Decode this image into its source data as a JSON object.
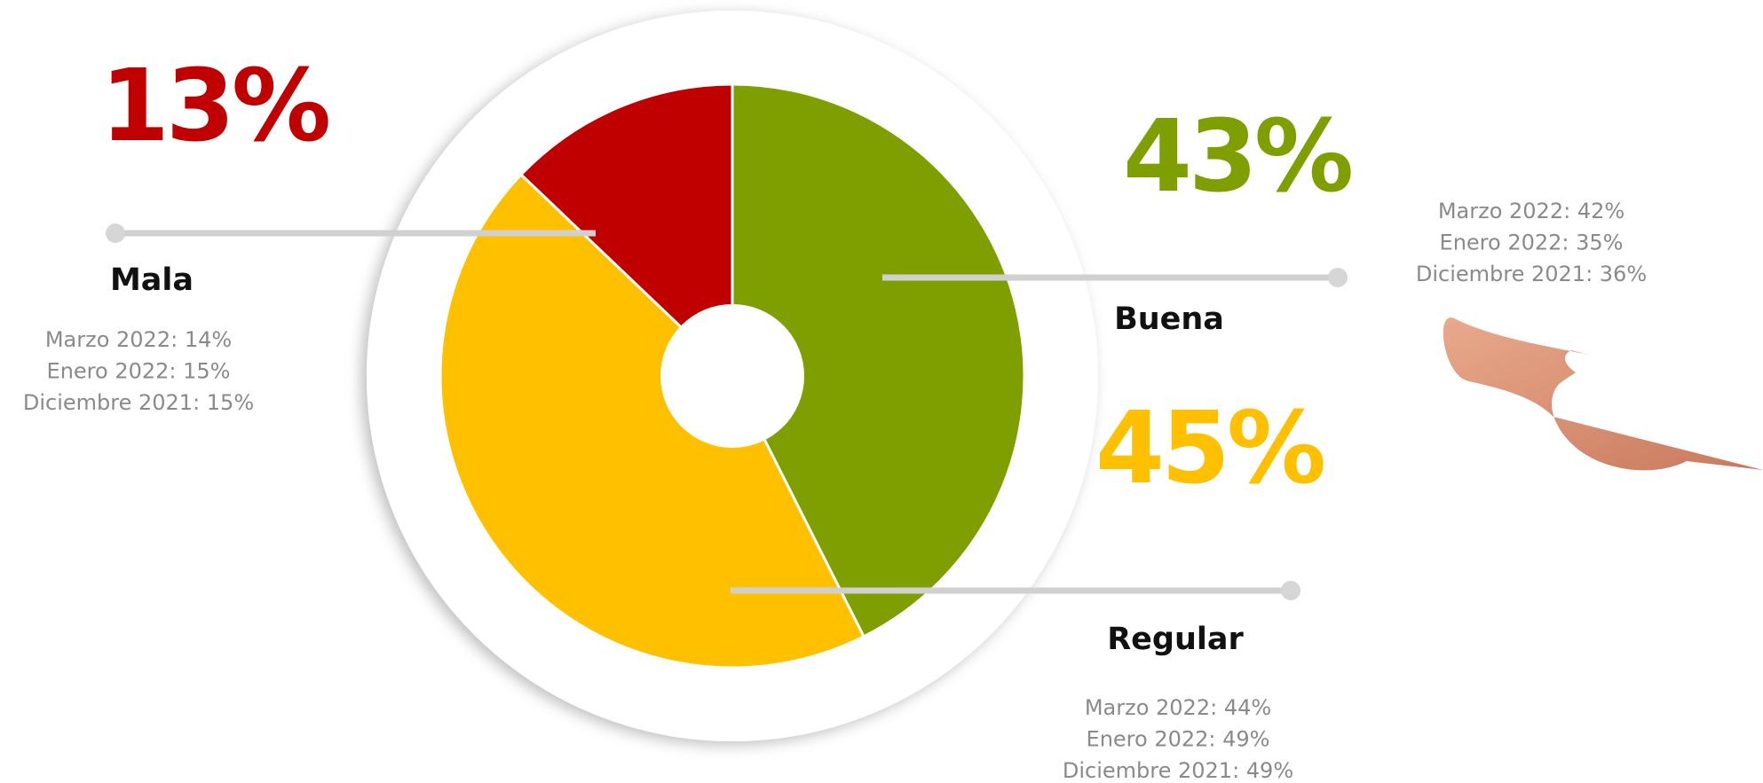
{
  "chart_data": {
    "type": "pie",
    "categories": [
      "Buena",
      "Regular",
      "Mala"
    ],
    "values": [
      43,
      45,
      13
    ],
    "value_labels": [
      "43%",
      "45%",
      "13%"
    ],
    "colors": [
      "#7f9f00",
      "#ffc000",
      "#c00000"
    ],
    "details": [
      [
        "Marzo 2022: 42%",
        "Enero 2022: 35%",
        "Diciembre 2021: 36%"
      ],
      [
        "Marzo 2022: 44%",
        "Enero 2022: 49%",
        "Diciembre 2021: 49%"
      ],
      [
        "Marzo 2022: 14%",
        "Enero 2022: 15%",
        "Diciembre 2021: 15%"
      ]
    ]
  }
}
